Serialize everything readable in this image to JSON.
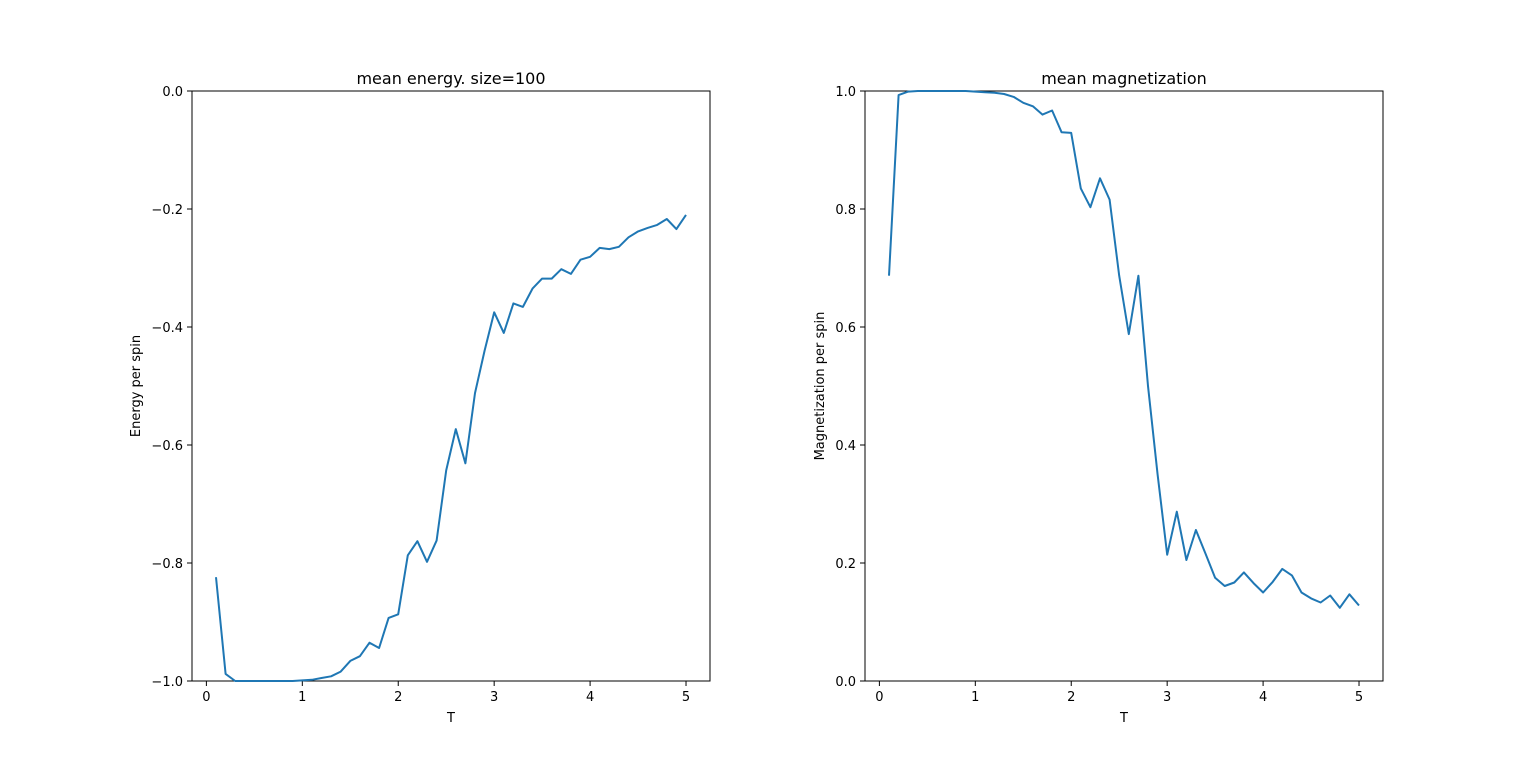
{
  "chart_data": [
    {
      "type": "line",
      "title": "mean energy. size=100",
      "xlabel": "T",
      "ylabel": "Energy per spin",
      "xlim": [
        -0.15,
        5.25
      ],
      "ylim": [
        -1.0,
        0.0
      ],
      "xticks": [
        0,
        1,
        2,
        3,
        4,
        5
      ],
      "xtick_labels": [
        "0",
        "1",
        "2",
        "3",
        "4",
        "5"
      ],
      "yticks": [
        -1.0,
        -0.8,
        -0.6,
        -0.4,
        -0.2,
        0.0
      ],
      "ytick_labels": [
        "−1.0",
        "−0.8",
        "−0.6",
        "−0.4",
        "−0.2",
        "0.0"
      ],
      "grid": false,
      "color": "#1f77b4",
      "x": [
        0.1,
        0.2,
        0.3,
        0.4,
        0.5,
        0.6,
        0.7,
        0.8,
        0.9,
        1.0,
        1.1,
        1.2,
        1.3,
        1.4,
        1.5,
        1.6,
        1.7,
        1.8,
        1.9,
        2.0,
        2.1,
        2.2,
        2.3,
        2.4,
        2.5,
        2.6,
        2.7,
        2.8,
        2.9,
        3.0,
        3.1,
        3.2,
        3.3,
        3.4,
        3.5,
        3.6,
        3.7,
        3.8,
        3.9,
        4.0,
        4.1,
        4.2,
        4.3,
        4.4,
        4.5,
        4.6,
        4.7,
        4.8,
        4.9,
        5.0
      ],
      "y": [
        -0.824,
        -0.988,
        -1.0,
        -1.0,
        -1.0,
        -1.0,
        -1.0,
        -1.0,
        -1.0,
        -0.999,
        -0.998,
        -0.995,
        -0.992,
        -0.984,
        -0.966,
        -0.958,
        -0.935,
        -0.944,
        -0.893,
        -0.887,
        -0.787,
        -0.763,
        -0.798,
        -0.762,
        -0.643,
        -0.573,
        -0.631,
        -0.512,
        -0.44,
        -0.375,
        -0.41,
        -0.36,
        -0.366,
        -0.335,
        -0.318,
        -0.318,
        -0.302,
        -0.31,
        -0.286,
        -0.281,
        -0.266,
        -0.268,
        -0.264,
        -0.248,
        -0.238,
        -0.232,
        -0.227,
        -0.217,
        -0.234,
        -0.21
      ]
    },
    {
      "type": "line",
      "title": "mean magnetization",
      "xlabel": "T",
      "ylabel": "Magnetization per spin",
      "xlim": [
        -0.15,
        5.25
      ],
      "ylim": [
        0.0,
        1.0
      ],
      "xticks": [
        0,
        1,
        2,
        3,
        4,
        5
      ],
      "xtick_labels": [
        "0",
        "1",
        "2",
        "3",
        "4",
        "5"
      ],
      "yticks": [
        0.0,
        0.2,
        0.4,
        0.6,
        0.8,
        1.0
      ],
      "ytick_labels": [
        "0.0",
        "0.2",
        "0.4",
        "0.6",
        "0.8",
        "1.0"
      ],
      "grid": false,
      "color": "#1f77b4",
      "x": [
        0.1,
        0.2,
        0.3,
        0.4,
        0.5,
        0.6,
        0.7,
        0.8,
        0.9,
        1.0,
        1.1,
        1.2,
        1.3,
        1.4,
        1.5,
        1.6,
        1.7,
        1.8,
        1.9,
        2.0,
        2.1,
        2.2,
        2.3,
        2.4,
        2.5,
        2.6,
        2.7,
        2.8,
        2.9,
        3.0,
        3.1,
        3.2,
        3.3,
        3.4,
        3.5,
        3.6,
        3.7,
        3.8,
        3.9,
        4.0,
        4.1,
        4.2,
        4.3,
        4.4,
        4.5,
        4.6,
        4.7,
        4.8,
        4.9,
        5.0
      ],
      "y": [
        0.687,
        0.993,
        0.999,
        1.0,
        1.0,
        1.0,
        1.0,
        1.0,
        1.0,
        0.999,
        0.998,
        0.997,
        0.995,
        0.99,
        0.98,
        0.974,
        0.96,
        0.967,
        0.93,
        0.929,
        0.835,
        0.803,
        0.852,
        0.816,
        0.687,
        0.588,
        0.687,
        0.5,
        0.35,
        0.214,
        0.287,
        0.205,
        0.256,
        0.216,
        0.175,
        0.161,
        0.167,
        0.184,
        0.166,
        0.15,
        0.168,
        0.19,
        0.179,
        0.15,
        0.14,
        0.133,
        0.145,
        0.124,
        0.147,
        0.128
      ]
    }
  ]
}
